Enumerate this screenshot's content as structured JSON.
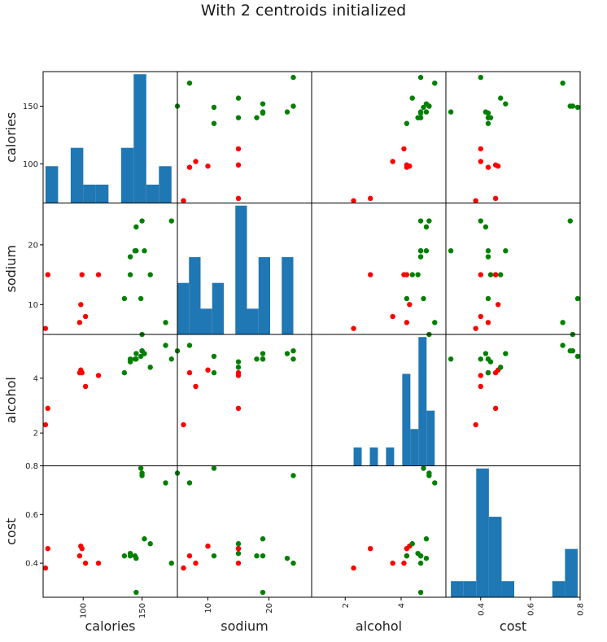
{
  "title": "With 2 centroids initialized",
  "chart_data": {
    "type": "scatter-matrix",
    "title": "With 2 centroids initialized",
    "variables": [
      "calories",
      "sodium",
      "alcohol",
      "cost"
    ],
    "ranges": {
      "calories": [
        66,
        180
      ],
      "sodium": [
        5,
        27
      ],
      "alcohol": [
        0.8,
        5.6
      ],
      "cost": [
        0.26,
        0.8
      ]
    },
    "ticks": {
      "calories": [
        100,
        150
      ],
      "sodium": [
        10,
        20
      ],
      "alcohol": [
        2,
        4
      ],
      "cost": [
        0.4,
        0.6,
        0.8
      ]
    },
    "cluster_colors": [
      "#ff0000",
      "#008000"
    ],
    "histogram_color": "#1f77b4",
    "points": {
      "calories": [
        68,
        70,
        97,
        98,
        99,
        102,
        113,
        135,
        140,
        140,
        144,
        145,
        145,
        149,
        150,
        150,
        152,
        157,
        170,
        175
      ],
      "sodium": [
        6,
        15,
        7,
        10,
        15,
        8,
        15,
        11,
        15,
        18,
        19,
        19,
        23,
        11,
        5,
        24,
        19,
        15,
        7,
        24
      ],
      "alcohol": [
        2.3,
        2.9,
        4.2,
        4.3,
        4.2,
        3.7,
        4.1,
        4.2,
        4.6,
        4.7,
        4.7,
        4.7,
        4.9,
        4.8,
        5.0,
        5.0,
        4.9,
        4.4,
        5.2,
        4.7
      ],
      "cost": [
        0.38,
        0.46,
        0.43,
        0.47,
        0.46,
        0.4,
        0.4,
        0.43,
        0.44,
        0.43,
        0.43,
        0.28,
        0.42,
        0.79,
        0.77,
        0.76,
        0.5,
        0.48,
        0.73,
        0.4
      ],
      "cluster": [
        0,
        0,
        0,
        0,
        0,
        0,
        0,
        1,
        1,
        1,
        1,
        1,
        1,
        1,
        1,
        1,
        1,
        1,
        1,
        1
      ]
    },
    "diagonal": "histogram"
  }
}
